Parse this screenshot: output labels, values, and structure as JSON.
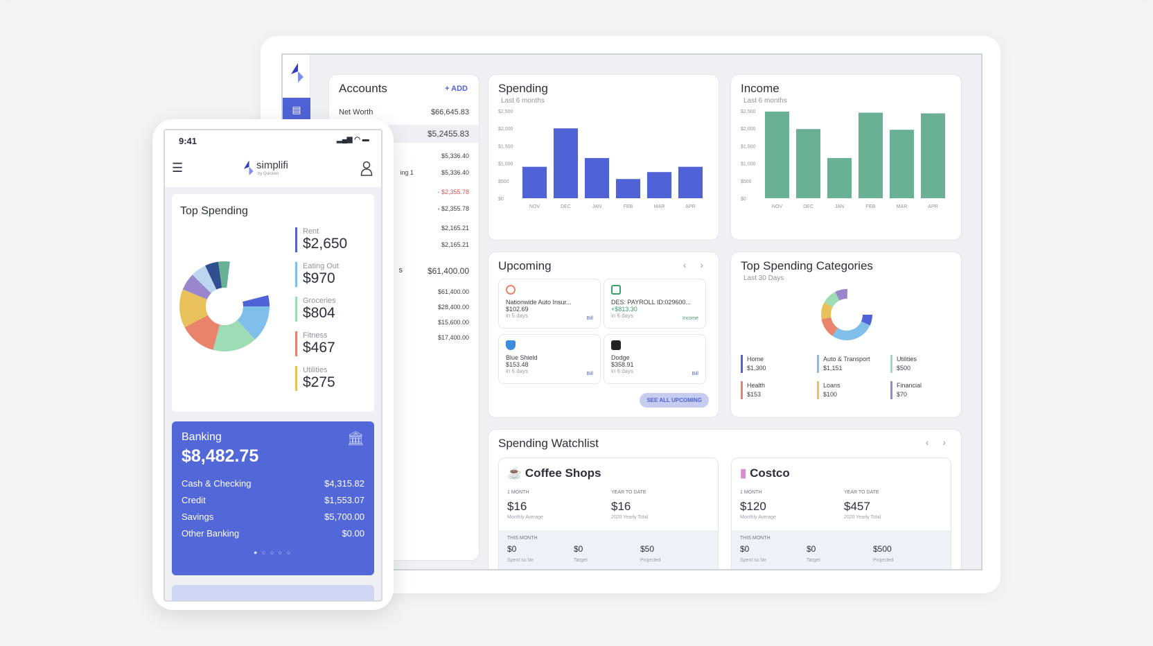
{
  "colors": {
    "accent": "#4f63d6",
    "income": "#6ab094",
    "bank": "#5268d8"
  },
  "accounts": {
    "title": "Accounts",
    "add_label": "+ ADD",
    "net_worth_label": "Net Worth",
    "net_worth_value": "$66,645.83",
    "group1_total": "$5,2455.83",
    "rows": [
      "$5,336.40",
      "$5,336.40",
      "- $2,355.78",
      "- $2,355.78",
      "$2,165.21",
      "$2,165.21"
    ],
    "row_label_partial": "ing 1",
    "group2_label_partial": "s",
    "group2_total": "$61,400.00",
    "rows2": [
      "$61,400.00",
      "$28,400.00",
      "$15,600.00",
      "$17,400.00"
    ]
  },
  "spending": {
    "title": "Spending",
    "subtitle": "Last 6 months",
    "chart_data": {
      "type": "bar",
      "categories": [
        "NOV",
        "DEC",
        "JAN",
        "FEB",
        "MAR",
        "APR"
      ],
      "values": [
        900,
        2000,
        1150,
        550,
        750,
        900
      ],
      "yticks": [
        "$2,500",
        "$2,000",
        "$1,500",
        "$1,000",
        "$500",
        "$0"
      ],
      "ylim": [
        0,
        2500
      ]
    }
  },
  "income": {
    "title": "Income",
    "subtitle": "Last 6 months",
    "chart_data": {
      "type": "bar",
      "categories": [
        "NOV",
        "DEC",
        "JAN",
        "FEB",
        "MAR",
        "APR"
      ],
      "values": [
        2480,
        1980,
        1150,
        2450,
        1960,
        2430
      ],
      "yticks": [
        "$2,500",
        "$2,000",
        "$1,500",
        "$1,000",
        "$500",
        "$0"
      ],
      "ylim": [
        0,
        2500
      ]
    }
  },
  "upcoming": {
    "title": "Upcoming",
    "see_all": "SEE ALL UPCOMING",
    "items": [
      {
        "name": "Nationwide Auto Insur...",
        "amount": "$102.69",
        "due": "in 5 days",
        "tag": "Bill"
      },
      {
        "name": "DES: PAYROLL ID:029600...",
        "amount": "+$813.30",
        "due": "in 6 days",
        "tag": "Income"
      },
      {
        "name": "Blue Shield",
        "amount": "$153.48",
        "due": "in 6 days",
        "tag": "Bill"
      },
      {
        "name": "Dodge",
        "amount": "$358.91",
        "due": "in 6 days",
        "tag": "Bill"
      }
    ]
  },
  "top_categories": {
    "title": "Top Spending Categories",
    "subtitle": "Last 30 Days",
    "legend": [
      {
        "label": "Home",
        "value": "$1,300",
        "color": "#4f63d6"
      },
      {
        "label": "Auto & Transport",
        "value": "$1,151",
        "color": "#7fbfe9"
      },
      {
        "label": "Utilities",
        "value": "$500",
        "color": "#9ddcb5"
      },
      {
        "label": "Health",
        "value": "$153",
        "color": "#e9836b"
      },
      {
        "label": "Loans",
        "value": "$100",
        "color": "#e8c15a"
      },
      {
        "label": "Financial",
        "value": "$70",
        "color": "#9a86cc"
      }
    ]
  },
  "watchlist": {
    "title": "Spending Watchlist",
    "cards": [
      {
        "name": "Coffee Shops",
        "month_label": "1 MONTH",
        "month_value": "$16",
        "month_sub": "Monthly Average",
        "ytd_label": "YEAR TO DATE",
        "ytd_value": "$16",
        "ytd_sub": "2020 Yearly Total",
        "this_month": "THIS MONTH",
        "spent": "$0",
        "target": "$0",
        "projected": "$50",
        "spent_label": "Spent so far",
        "target_label": "Target",
        "projected_label": "Projected"
      },
      {
        "name": "Costco",
        "month_label": "1 MONTH",
        "month_value": "$120",
        "month_sub": "Monthly Average",
        "ytd_label": "YEAR TO DATE",
        "ytd_value": "$457",
        "ytd_sub": "2020 Yearly Total",
        "this_month": "THIS MONTH",
        "spent": "$0",
        "target": "$0",
        "projected": "$500",
        "spent_label": "Spent so far",
        "target_label": "Target",
        "projected_label": "Projected"
      }
    ]
  },
  "phone": {
    "time": "9:41",
    "brand": "simplifi",
    "brand_sub": "by Quicken",
    "top_spending_title": "Top Spending",
    "top_spending": [
      {
        "label": "Rent",
        "value": "$2,650",
        "color": "#4f63d6"
      },
      {
        "label": "Eating Out",
        "value": "$970",
        "color": "#7fbfe9"
      },
      {
        "label": "Groceries",
        "value": "$804",
        "color": "#9ddcb5"
      },
      {
        "label": "Fitness",
        "value": "$467",
        "color": "#e9836b"
      },
      {
        "label": "Utilities",
        "value": "$275",
        "color": "#e8c15a"
      }
    ],
    "banking": {
      "title": "Banking",
      "total": "$8,482.75",
      "lines": [
        {
          "label": "Cash & Checking",
          "value": "$4,315.82"
        },
        {
          "label": "Credit",
          "value": "$1,553.07"
        },
        {
          "label": "Savings",
          "value": "$5,700.00"
        },
        {
          "label": "Other Banking",
          "value": "$0.00"
        }
      ]
    }
  }
}
